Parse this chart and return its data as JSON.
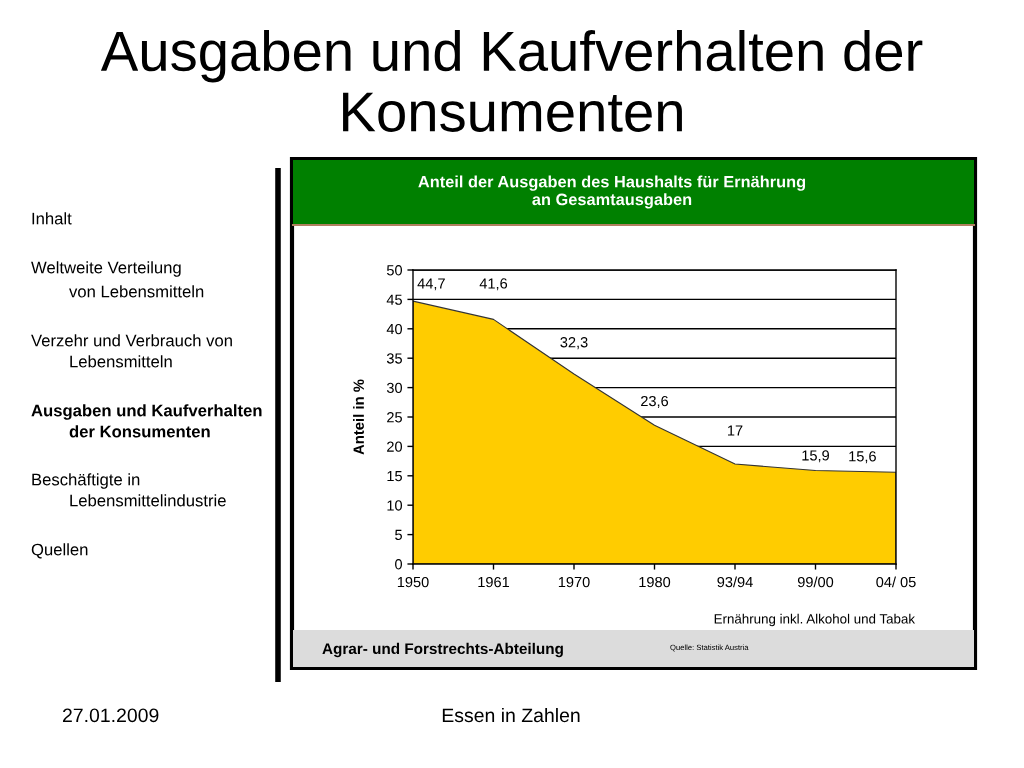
{
  "chart_data": {
    "type": "area",
    "title": "Ausgaben und Kaufverhalten der Konsumenten",
    "subtitle": "Anteil der Ausgaben des Haushalts für Ernährung an Gesamtausgaben",
    "ylabel": "Anteil in %",
    "categories": [
      "1950",
      "1961",
      "1970",
      "1980",
      "93/94",
      "99/00",
      "04/ 05"
    ],
    "values": [
      44.7,
      41.6,
      32.3,
      23.6,
      17,
      15.9,
      15.6
    ],
    "color": "#ffcc00",
    "value_labels": [
      "44,7",
      "41,6",
      "32,3",
      "23,6",
      "17",
      "15,9",
      "15,6"
    ],
    "ylim": [
      0,
      50
    ],
    "yticks": [
      0,
      5,
      10,
      15,
      20,
      25,
      30,
      35,
      40,
      45,
      50
    ],
    "grid": "y",
    "annotations": [
      "Inhalt",
      "Weltweite Verteilung",
      "von Lebensmitteln",
      "Verzehr und Verbrauch von",
      "Lebensmitteln",
      "Ausgaben und Kaufverhalten",
      "der Konsumenten",
      "Beschäftigte in",
      "Lebensmittelindustrie",
      "Quellen",
      "Ernährung inkl. Alkohol und Tabak",
      "Agrar- und Forstrechts-Abteilung",
      "Quelle: Statistik Austria",
      "27.01.2009",
      "Essen in Zahlen"
    ]
  }
}
